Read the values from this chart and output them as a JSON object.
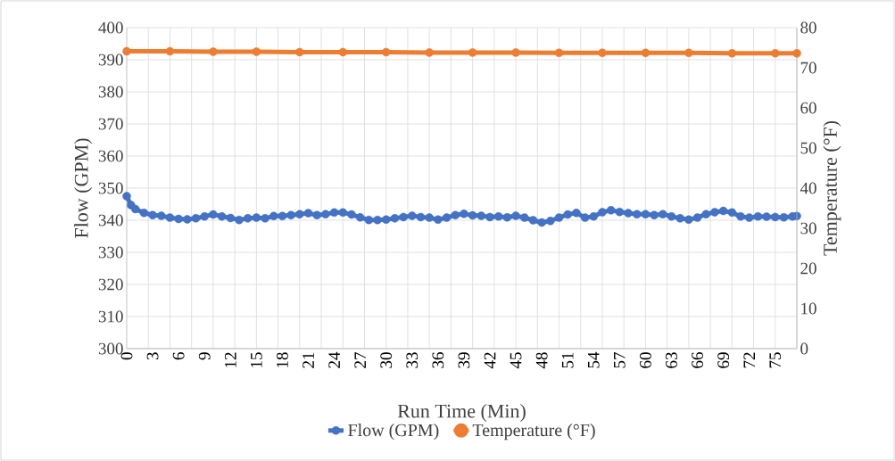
{
  "chart_data": {
    "type": "line",
    "xlabel": "Run Time (Min)",
    "ylabel": "Flow (GPM)",
    "y2label": "Temperature (°F)",
    "xlim": [
      0,
      77.5
    ],
    "ylim": [
      300,
      400
    ],
    "y2lim": [
      0,
      80
    ],
    "xticks": [
      {
        "value": 2.5,
        "label": null
      },
      {
        "value": 5,
        "label": null
      },
      {
        "value": 7.5,
        "label": null
      },
      {
        "value": 10,
        "label": null
      },
      {
        "value": 12.5,
        "label": null
      },
      {
        "value": 15,
        "label": null
      },
      {
        "value": 17.5,
        "label": null
      },
      {
        "value": 20,
        "label": null
      },
      {
        "value": 22.5,
        "label": null
      },
      {
        "value": 25,
        "label": null
      },
      {
        "value": 27.5,
        "label": null
      },
      {
        "value": 30,
        "label": null
      },
      {
        "value": 32.5,
        "label": null
      },
      {
        "value": 35,
        "label": null
      },
      {
        "value": 37.5,
        "label": null
      },
      {
        "value": 40,
        "label": null
      },
      {
        "value": 42.5,
        "label": null
      },
      {
        "value": 45,
        "label": null
      },
      {
        "value": 47.5,
        "label": null
      },
      {
        "value": 50,
        "label": null
      },
      {
        "value": 52.5,
        "label": null
      },
      {
        "value": 55,
        "label": null
      },
      {
        "value": 57.5,
        "label": null
      },
      {
        "value": 60,
        "label": null
      },
      {
        "value": 62.5,
        "label": null
      },
      {
        "value": 65,
        "label": null
      },
      {
        "value": 67.5,
        "label": null
      },
      {
        "value": 70,
        "label": null
      },
      {
        "value": 72.5,
        "label": null
      },
      {
        "value": 75,
        "label": null
      },
      {
        "value": 77.5,
        "label": null
      },
      0,
      3,
      6,
      9,
      12,
      15,
      18,
      21,
      24,
      27,
      30,
      33,
      36,
      39,
      42,
      45,
      48,
      51,
      54,
      57,
      60,
      63,
      66,
      69,
      72,
      75
    ],
    "yticks": [
      300,
      310,
      320,
      330,
      340,
      350,
      360,
      370,
      380,
      390,
      400
    ],
    "y2ticks": [
      0,
      10,
      20,
      30,
      40,
      50,
      60,
      70,
      80
    ],
    "grid": true,
    "legend": "bottom",
    "marker": "circle",
    "line_style": "solid",
    "series": [
      {
        "name": "Flow (GPM)",
        "color": "#4472c4",
        "x": [
          0,
          0.5,
          1,
          2,
          3,
          4,
          5,
          6,
          7,
          8,
          9,
          10,
          11,
          12,
          13,
          14,
          15,
          16,
          17,
          18,
          19,
          20,
          21,
          22,
          23,
          24,
          25,
          26,
          27,
          28,
          29,
          30,
          31,
          32,
          33,
          34,
          35,
          36,
          37,
          38,
          39,
          40,
          41,
          42,
          43,
          44,
          45,
          46,
          47,
          48,
          49,
          50,
          51,
          52,
          53,
          54,
          55,
          56,
          57,
          58,
          59,
          60,
          61,
          62,
          63,
          64,
          65,
          66,
          67,
          68,
          69,
          70,
          71,
          72,
          73,
          74,
          75,
          76,
          77,
          77.5
        ],
        "values": [
          347.5,
          344.7,
          343.5,
          342.3,
          341.6,
          341.4,
          340.8,
          340.4,
          340.3,
          340.6,
          341.2,
          341.8,
          341.2,
          340.7,
          340.1,
          340.6,
          340.8,
          340.6,
          341.3,
          341.3,
          341.6,
          341.9,
          342.2,
          341.6,
          341.9,
          342.4,
          342.4,
          341.8,
          340.9,
          340.1,
          340.1,
          340.2,
          340.6,
          341.0,
          341.4,
          341.0,
          340.8,
          340.2,
          340.8,
          341.6,
          342.0,
          341.5,
          341.4,
          341.0,
          341.2,
          340.9,
          341.4,
          340.8,
          340.0,
          339.3,
          339.8,
          340.8,
          341.8,
          342.3,
          340.8,
          341.2,
          342.5,
          343.1,
          342.6,
          342.2,
          341.9,
          341.9,
          341.6,
          341.9,
          341.2,
          340.6,
          340.2,
          340.8,
          341.9,
          342.5,
          342.9,
          342.4,
          341.2,
          340.8,
          341.2,
          341.1,
          341.0,
          340.9,
          341.2,
          341.3
        ]
      },
      {
        "name": "Temperature (°F)",
        "color": "#ed7d31",
        "axis": "y2",
        "x": [
          0,
          5,
          10,
          15,
          20,
          25,
          30,
          35,
          40,
          45,
          50,
          55,
          60,
          65,
          70,
          75,
          77.5
        ],
        "values": [
          74.1,
          74.1,
          74.0,
          74.0,
          73.9,
          73.9,
          73.9,
          73.8,
          73.8,
          73.8,
          73.7,
          73.7,
          73.7,
          73.7,
          73.6,
          73.6,
          73.6
        ]
      }
    ]
  }
}
